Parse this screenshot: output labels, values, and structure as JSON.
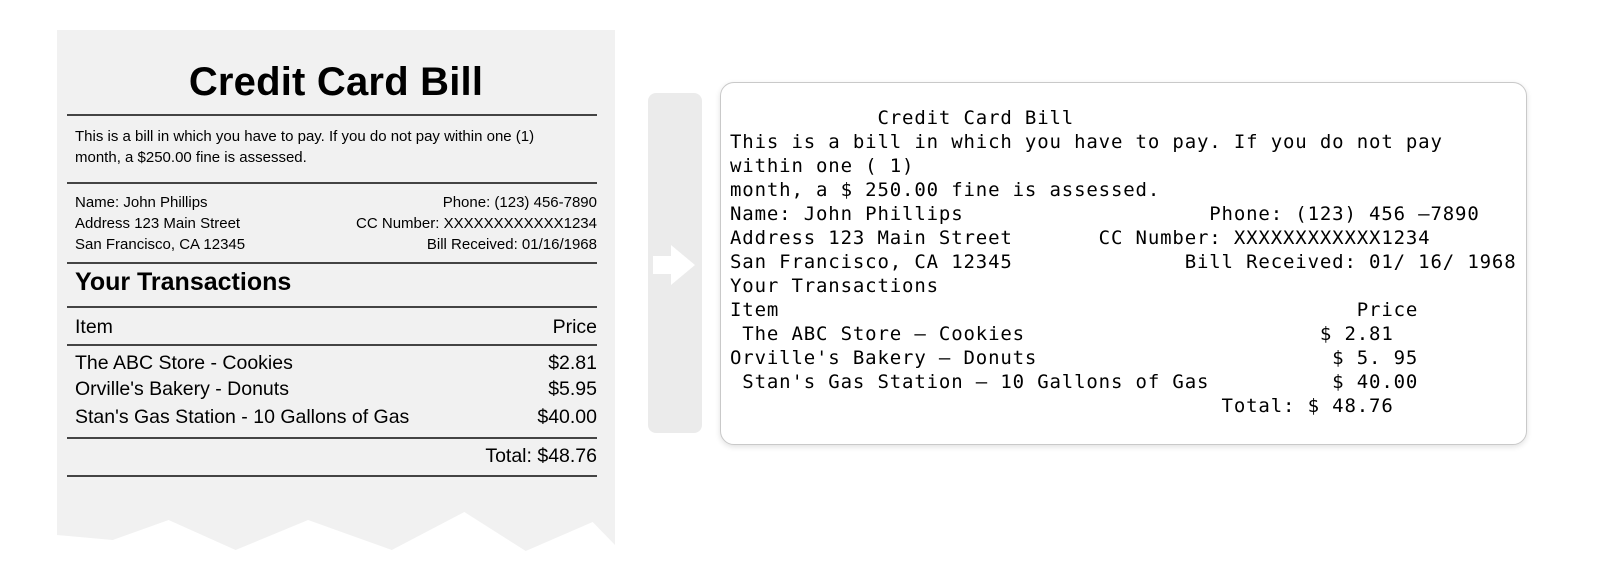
{
  "receipt": {
    "title": "Credit Card Bill",
    "notice_line1": "This is a bill in which you have to pay. If you do not pay within one (1)",
    "notice_line2": "month, a $250.00 fine is assessed.",
    "name": "Name: John Phillips",
    "address": "Address 123 Main Street",
    "city": "San Francisco, CA 12345",
    "phone": "Phone: (123) 456-7890",
    "cc_number": "CC Number: XXXXXXXXXXXX1234",
    "bill_received": "Bill Received: 01/16/1968",
    "transactions_heading": "Your Transactions",
    "col_item": "Item",
    "col_price": "Price",
    "transactions": [
      {
        "item": "The ABC Store - Cookies",
        "price": "$2.81"
      },
      {
        "item": "Orville's Bakery - Donuts",
        "price": "$5.95"
      },
      {
        "item": "Stan's Gas Station - 10 Gallons of Gas",
        "price": "$40.00"
      }
    ],
    "total": "Total: $48.76"
  },
  "arrow": {
    "icon": "arrow-right-icon",
    "color": "#ffffff",
    "panel_color": "#ebebeb"
  },
  "ocr_output": {
    "lines": [
      "            Credit Card Bill",
      "This is a bill in which you have to pay. If you do not pay",
      "within one ( 1)",
      "month, a $ 250.00 fine is assessed.",
      "Name: John Phillips                    Phone: (123) 456 –7890",
      "Address 123 Main Street       CC Number: XXXXXXXXXXXX1234",
      "San Francisco, CA 12345              Bill Received: 01/ 16/ 1968",
      "Your Transactions",
      "Item                                               Price",
      " The ABC Store – Cookies                        $ 2.81",
      "Orville's Bakery – Donuts                        $ 5. 95",
      " Stan's Gas Station – 10 Gallons of Gas          $ 40.00",
      "                                        Total: $ 48.76"
    ]
  }
}
